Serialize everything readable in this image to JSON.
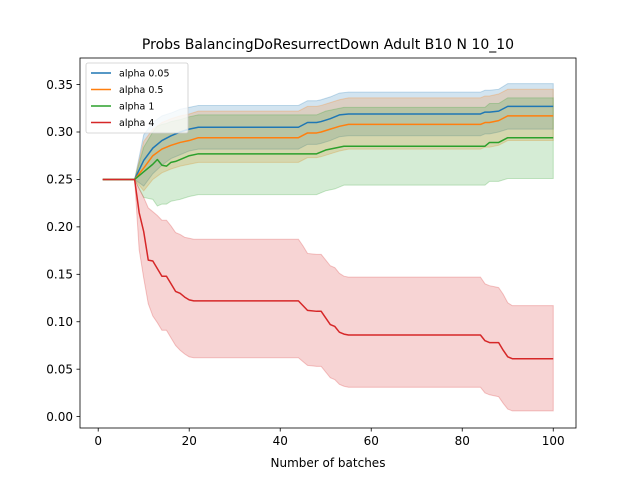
{
  "chart_data": {
    "type": "line",
    "title": "Probs BalancingDoResurrectDown Adult B10 N 10_10",
    "xlabel": "Number of batches",
    "ylabel": "",
    "xlim": [
      -4,
      105
    ],
    "ylim": [
      -0.012,
      0.378
    ],
    "xticks": [
      0,
      20,
      40,
      60,
      80,
      100
    ],
    "yticks": [
      0.0,
      0.05,
      0.1,
      0.15,
      0.2,
      0.25,
      0.3,
      0.35
    ],
    "ytick_labels": [
      "0.00",
      "0.05",
      "0.10",
      "0.15",
      "0.20",
      "0.25",
      "0.30",
      "0.35"
    ],
    "grid": false,
    "legend_position": "top-left",
    "series": [
      {
        "name": "alpha 0.05",
        "color": "#1f77b4",
        "x": [
          1,
          8,
          10,
          12,
          14,
          16,
          18,
          20,
          22,
          44,
          46,
          48,
          49,
          51,
          53,
          55,
          84,
          85,
          86,
          88,
          90,
          100
        ],
        "y": [
          0.25,
          0.25,
          0.27,
          0.283,
          0.291,
          0.296,
          0.3,
          0.303,
          0.305,
          0.305,
          0.31,
          0.31,
          0.311,
          0.314,
          0.318,
          0.319,
          0.319,
          0.321,
          0.321,
          0.322,
          0.327,
          0.327
        ],
        "lower": [
          0.25,
          0.25,
          0.243,
          0.256,
          0.265,
          0.272,
          0.276,
          0.28,
          0.282,
          0.282,
          0.287,
          0.287,
          0.288,
          0.291,
          0.295,
          0.296,
          0.296,
          0.298,
          0.298,
          0.3,
          0.303,
          0.303
        ],
        "upper": [
          0.25,
          0.25,
          0.297,
          0.31,
          0.317,
          0.32,
          0.324,
          0.326,
          0.328,
          0.328,
          0.333,
          0.333,
          0.334,
          0.337,
          0.341,
          0.342,
          0.342,
          0.344,
          0.344,
          0.345,
          0.351,
          0.351
        ]
      },
      {
        "name": "alpha 0.5",
        "color": "#ff7f0e",
        "x": [
          1,
          8,
          10,
          12,
          14,
          16,
          18,
          20,
          22,
          44,
          46,
          48,
          49,
          51,
          53,
          55,
          84,
          85,
          86,
          88,
          90,
          100
        ],
        "y": [
          0.25,
          0.25,
          0.262,
          0.275,
          0.282,
          0.286,
          0.289,
          0.291,
          0.294,
          0.294,
          0.299,
          0.299,
          0.3,
          0.303,
          0.306,
          0.308,
          0.308,
          0.31,
          0.31,
          0.312,
          0.317,
          0.317
        ],
        "lower": [
          0.25,
          0.25,
          0.238,
          0.25,
          0.257,
          0.261,
          0.264,
          0.266,
          0.268,
          0.268,
          0.273,
          0.273,
          0.274,
          0.277,
          0.28,
          0.282,
          0.282,
          0.284,
          0.284,
          0.286,
          0.291,
          0.291
        ],
        "upper": [
          0.25,
          0.25,
          0.29,
          0.303,
          0.31,
          0.314,
          0.317,
          0.319,
          0.322,
          0.322,
          0.327,
          0.327,
          0.328,
          0.331,
          0.334,
          0.336,
          0.336,
          0.338,
          0.338,
          0.34,
          0.345,
          0.345
        ]
      },
      {
        "name": "alpha 1",
        "color": "#2ca02c",
        "x": [
          1,
          8,
          10,
          12,
          13,
          14,
          15,
          16,
          17,
          18,
          20,
          22,
          48,
          50,
          52,
          54,
          85,
          86,
          88,
          90,
          100
        ],
        "y": [
          0.25,
          0.25,
          0.258,
          0.266,
          0.271,
          0.265,
          0.264,
          0.268,
          0.269,
          0.271,
          0.275,
          0.277,
          0.277,
          0.281,
          0.283,
          0.285,
          0.285,
          0.289,
          0.289,
          0.294,
          0.294
        ],
        "lower": [
          0.25,
          0.25,
          0.231,
          0.229,
          0.222,
          0.224,
          0.224,
          0.227,
          0.228,
          0.229,
          0.232,
          0.234,
          0.234,
          0.238,
          0.24,
          0.244,
          0.244,
          0.248,
          0.248,
          0.251,
          0.251
        ],
        "upper": [
          0.25,
          0.25,
          0.284,
          0.3,
          0.306,
          0.308,
          0.309,
          0.311,
          0.312,
          0.313,
          0.316,
          0.318,
          0.318,
          0.322,
          0.324,
          0.326,
          0.326,
          0.33,
          0.33,
          0.336,
          0.336
        ]
      },
      {
        "name": "alpha 4",
        "color": "#d62728",
        "x": [
          1,
          8,
          9,
          10,
          11,
          12,
          13,
          14,
          15,
          16,
          17,
          18,
          19,
          20,
          21,
          22,
          44,
          45,
          46,
          48,
          49,
          50,
          51,
          52,
          53,
          54,
          55,
          84,
          85,
          86,
          87,
          88,
          89,
          90,
          91,
          100
        ],
        "y": [
          0.25,
          0.25,
          0.215,
          0.195,
          0.165,
          0.164,
          0.156,
          0.148,
          0.148,
          0.14,
          0.132,
          0.13,
          0.126,
          0.123,
          0.122,
          0.122,
          0.122,
          0.117,
          0.112,
          0.111,
          0.111,
          0.104,
          0.097,
          0.095,
          0.089,
          0.087,
          0.086,
          0.086,
          0.08,
          0.078,
          0.078,
          0.078,
          0.07,
          0.063,
          0.061,
          0.061
        ],
        "lower": [
          0.25,
          0.25,
          0.176,
          0.146,
          0.119,
          0.106,
          0.099,
          0.091,
          0.091,
          0.083,
          0.075,
          0.07,
          0.066,
          0.063,
          0.062,
          0.062,
          0.062,
          0.058,
          0.054,
          0.053,
          0.053,
          0.047,
          0.041,
          0.039,
          0.034,
          0.032,
          0.031,
          0.031,
          0.025,
          0.023,
          0.022,
          0.021,
          0.014,
          0.008,
          0.006,
          0.006
        ],
        "upper": [
          0.25,
          0.25,
          0.24,
          0.231,
          0.22,
          0.216,
          0.212,
          0.207,
          0.207,
          0.201,
          0.194,
          0.192,
          0.189,
          0.188,
          0.187,
          0.187,
          0.187,
          0.18,
          0.172,
          0.171,
          0.171,
          0.165,
          0.159,
          0.157,
          0.151,
          0.148,
          0.147,
          0.147,
          0.14,
          0.138,
          0.137,
          0.136,
          0.129,
          0.12,
          0.117,
          0.117
        ]
      }
    ]
  }
}
